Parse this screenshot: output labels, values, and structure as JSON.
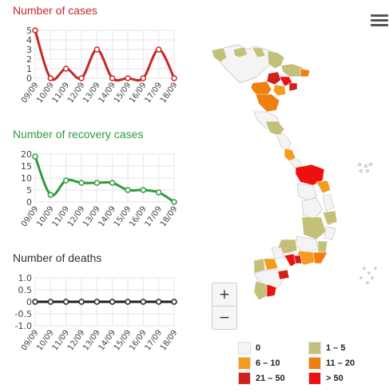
{
  "colors": {
    "cases": "#c62828",
    "recovery": "#2e9b3d",
    "deaths": "#222222",
    "grid": "#e6e6e6"
  },
  "icons": {
    "menu": "hamburger-menu-icon"
  },
  "charts": {
    "cases": {
      "title": "Number of cases",
      "chart_data": {
        "type": "line",
        "title": "Number of cases",
        "categories": [
          "09/09",
          "10/09",
          "11/09",
          "12/09",
          "13/09",
          "14/09",
          "15/09",
          "16/09",
          "17/09",
          "18/09"
        ],
        "values": [
          5,
          0,
          1,
          0,
          3,
          0,
          0,
          0,
          3,
          0
        ],
        "yticks": [
          0,
          1,
          2,
          3,
          4,
          5
        ],
        "ylim": [
          0,
          5
        ],
        "grid": true
      }
    },
    "recovery": {
      "title": "Number of recovery cases",
      "chart_data": {
        "type": "line",
        "title": "Number of recovery cases",
        "categories": [
          "09/09",
          "10/09",
          "11/09",
          "12/09",
          "13/09",
          "14/09",
          "15/09",
          "16/09",
          "17/09",
          "18/09"
        ],
        "values": [
          19,
          3,
          9,
          8,
          8,
          8,
          5,
          5,
          4,
          0
        ],
        "yticks": [
          0,
          5,
          10,
          15,
          20
        ],
        "ylim": [
          0,
          20
        ],
        "grid": true
      }
    },
    "deaths": {
      "title": "Number of deaths",
      "chart_data": {
        "type": "line",
        "title": "Number of deaths",
        "categories": [
          "09/09",
          "10/09",
          "11/09",
          "12/09",
          "13/09",
          "14/09",
          "15/09",
          "16/09",
          "17/09",
          "18/09"
        ],
        "values": [
          0,
          0,
          0,
          0,
          0,
          0,
          0,
          0,
          0,
          0
        ],
        "yticks": [
          -1.0,
          -0.5,
          0,
          0.5,
          1.0
        ],
        "ytick_labels": [
          "-1.0",
          "-0.5",
          "0",
          "0.5",
          "1.0"
        ],
        "ylim": [
          -1,
          1
        ],
        "grid": true
      }
    }
  },
  "map": {
    "zoom_in": "+",
    "zoom_out": "−",
    "legend": [
      {
        "label": "0",
        "color": "#f4f4f4"
      },
      {
        "label": "1 – 5",
        "color": "#c3c07a"
      },
      {
        "label": "6 – 10",
        "color": "#f59b1e"
      },
      {
        "label": "11 – 20",
        "color": "#f07f10"
      },
      {
        "label": "21 – 50",
        "color": "#d0201a"
      },
      {
        "label": "> 50",
        "color": "#ee0f0f"
      }
    ]
  }
}
